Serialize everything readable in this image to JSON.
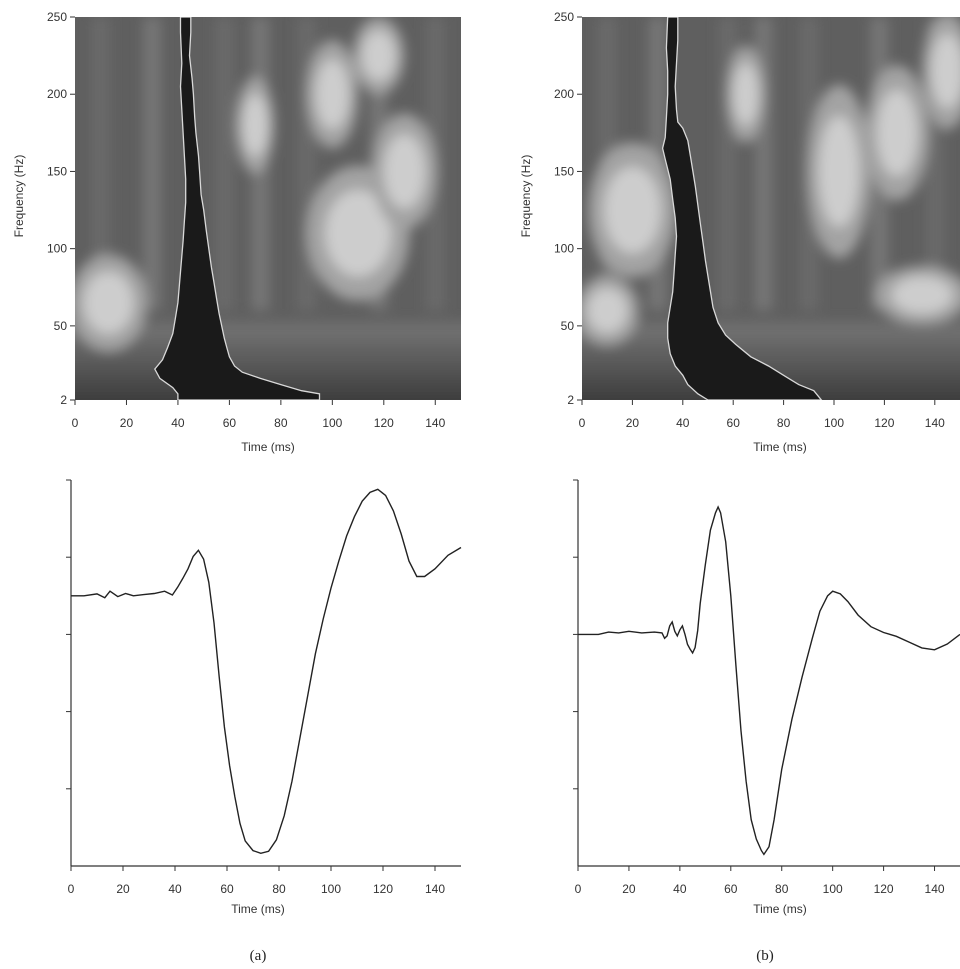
{
  "panels": [
    {
      "caption": "(a)",
      "spectrogram": {
        "type": "heatmap",
        "xlabel": "Time (ms)",
        "ylabel": "Frequency (Hz)",
        "xlim": [
          0,
          150
        ],
        "ylim": [
          2,
          250
        ],
        "xticks": [
          0,
          20,
          40,
          60,
          80,
          100,
          120,
          140
        ],
        "yticks": [
          2,
          50,
          100,
          150,
          200,
          250
        ],
        "ridge": [
          [
            45,
            250
          ],
          [
            45,
            240
          ],
          [
            44.5,
            225
          ],
          [
            45.5,
            210
          ],
          [
            46,
            200
          ],
          [
            46.5,
            185
          ],
          [
            47,
            175
          ],
          [
            48,
            160
          ],
          [
            48.5,
            148
          ],
          [
            49,
            135
          ],
          [
            50,
            125
          ],
          [
            51,
            112
          ],
          [
            52,
            100
          ],
          [
            53,
            88
          ],
          [
            54,
            78
          ],
          [
            55,
            68
          ],
          [
            56,
            58
          ],
          [
            57,
            50
          ],
          [
            58,
            42
          ],
          [
            59,
            36
          ],
          [
            60,
            30
          ],
          [
            62,
            24
          ],
          [
            65,
            20
          ],
          [
            72,
            16
          ],
          [
            80,
            12
          ],
          [
            88,
            8
          ],
          [
            95,
            6
          ],
          [
            95,
            2
          ],
          [
            40,
            2
          ],
          [
            40,
            6
          ],
          [
            38,
            10
          ],
          [
            33,
            16
          ],
          [
            31,
            22
          ],
          [
            34,
            28
          ],
          [
            36,
            36
          ],
          [
            38,
            45
          ],
          [
            39,
            55
          ],
          [
            40,
            65
          ],
          [
            40.5,
            75
          ],
          [
            41,
            85
          ],
          [
            41.5,
            95
          ],
          [
            42,
            105
          ],
          [
            42.5,
            118
          ],
          [
            43,
            130
          ],
          [
            43,
            145
          ],
          [
            42.5,
            160
          ],
          [
            42,
            175
          ],
          [
            41.5,
            190
          ],
          [
            41,
            205
          ],
          [
            41.5,
            220
          ],
          [
            41,
            240
          ],
          [
            41,
            250
          ]
        ],
        "high_regions": [
          {
            "x": 13,
            "y": 65,
            "rx": 12,
            "ry": 25
          },
          {
            "x": 110,
            "y": 110,
            "rx": 16,
            "ry": 35
          },
          {
            "x": 128,
            "y": 150,
            "rx": 10,
            "ry": 30
          },
          {
            "x": 70,
            "y": 180,
            "rx": 6,
            "ry": 25
          },
          {
            "x": 100,
            "y": 200,
            "rx": 8,
            "ry": 28
          },
          {
            "x": 118,
            "y": 225,
            "rx": 8,
            "ry": 20
          }
        ]
      },
      "waveform": {
        "type": "line",
        "xlabel": "Time (ms)",
        "xlim": [
          0,
          150
        ],
        "ylim": [
          0,
          1
        ],
        "xticks": [
          0,
          20,
          40,
          60,
          80,
          100,
          120,
          140
        ],
        "points": [
          [
            0,
            0.7
          ],
          [
            5,
            0.7
          ],
          [
            10,
            0.705
          ],
          [
            13,
            0.695
          ],
          [
            15,
            0.712
          ],
          [
            18,
            0.698
          ],
          [
            21,
            0.706
          ],
          [
            24,
            0.7
          ],
          [
            28,
            0.703
          ],
          [
            32,
            0.706
          ],
          [
            36,
            0.712
          ],
          [
            39,
            0.702
          ],
          [
            41,
            0.722
          ],
          [
            43,
            0.745
          ],
          [
            45,
            0.77
          ],
          [
            47,
            0.802
          ],
          [
            49,
            0.818
          ],
          [
            51,
            0.795
          ],
          [
            53,
            0.735
          ],
          [
            55,
            0.63
          ],
          [
            57,
            0.49
          ],
          [
            59,
            0.36
          ],
          [
            61,
            0.26
          ],
          [
            63,
            0.18
          ],
          [
            65,
            0.11
          ],
          [
            67,
            0.065
          ],
          [
            70,
            0.04
          ],
          [
            73,
            0.033
          ],
          [
            76,
            0.038
          ],
          [
            79,
            0.068
          ],
          [
            82,
            0.13
          ],
          [
            85,
            0.22
          ],
          [
            88,
            0.33
          ],
          [
            91,
            0.44
          ],
          [
            94,
            0.55
          ],
          [
            97,
            0.64
          ],
          [
            100,
            0.72
          ],
          [
            103,
            0.79
          ],
          [
            106,
            0.855
          ],
          [
            109,
            0.905
          ],
          [
            112,
            0.945
          ],
          [
            115,
            0.968
          ],
          [
            118,
            0.976
          ],
          [
            121,
            0.96
          ],
          [
            124,
            0.92
          ],
          [
            127,
            0.86
          ],
          [
            130,
            0.79
          ],
          [
            133,
            0.75
          ],
          [
            136,
            0.75
          ],
          [
            140,
            0.77
          ],
          [
            145,
            0.805
          ],
          [
            150,
            0.825
          ]
        ]
      }
    },
    {
      "caption": "(b)",
      "spectrogram": {
        "type": "heatmap",
        "xlabel": "Time (ms)",
        "ylabel": "Frequency (Hz)",
        "xlim": [
          0,
          150
        ],
        "ylim": [
          2,
          250
        ],
        "xticks": [
          0,
          20,
          40,
          60,
          80,
          100,
          120,
          140
        ],
        "yticks": [
          2,
          50,
          100,
          150,
          200,
          250
        ],
        "ridge": [
          [
            38,
            250
          ],
          [
            38,
            235
          ],
          [
            37.5,
            220
          ],
          [
            37,
            205
          ],
          [
            37.5,
            190
          ],
          [
            38,
            182
          ],
          [
            40,
            178
          ],
          [
            42,
            170
          ],
          [
            43,
            160
          ],
          [
            44,
            150
          ],
          [
            45,
            140
          ],
          [
            46,
            128
          ],
          [
            47,
            116
          ],
          [
            48,
            104
          ],
          [
            49,
            92
          ],
          [
            50,
            82
          ],
          [
            51,
            72
          ],
          [
            52,
            62
          ],
          [
            54,
            52
          ],
          [
            57,
            44
          ],
          [
            61,
            38
          ],
          [
            67,
            30
          ],
          [
            74,
            24
          ],
          [
            80,
            18
          ],
          [
            86,
            12
          ],
          [
            92,
            8
          ],
          [
            95,
            2
          ],
          [
            50,
            2
          ],
          [
            46,
            6
          ],
          [
            42,
            12
          ],
          [
            40,
            18
          ],
          [
            37,
            24
          ],
          [
            35,
            32
          ],
          [
            34,
            42
          ],
          [
            34,
            52
          ],
          [
            35,
            62
          ],
          [
            36,
            72
          ],
          [
            36.5,
            84
          ],
          [
            37,
            96
          ],
          [
            37.5,
            108
          ],
          [
            37,
            120
          ],
          [
            36,
            132
          ],
          [
            35,
            145
          ],
          [
            33,
            158
          ],
          [
            32,
            165
          ],
          [
            33,
            172
          ],
          [
            33.5,
            185
          ],
          [
            34,
            200
          ],
          [
            34,
            215
          ],
          [
            33.5,
            230
          ],
          [
            34,
            250
          ]
        ],
        "high_regions": [
          {
            "x": 20,
            "y": 125,
            "rx": 14,
            "ry": 35
          },
          {
            "x": 10,
            "y": 60,
            "rx": 10,
            "ry": 18
          },
          {
            "x": 102,
            "y": 150,
            "rx": 10,
            "ry": 45
          },
          {
            "x": 125,
            "y": 175,
            "rx": 10,
            "ry": 35
          },
          {
            "x": 145,
            "y": 215,
            "rx": 8,
            "ry": 30
          },
          {
            "x": 135,
            "y": 70,
            "rx": 15,
            "ry": 15
          },
          {
            "x": 65,
            "y": 200,
            "rx": 6,
            "ry": 25
          }
        ]
      },
      "waveform": {
        "type": "line",
        "xlabel": "Time (ms)",
        "xlim": [
          0,
          150
        ],
        "ylim": [
          0,
          1
        ],
        "xticks": [
          0,
          20,
          40,
          60,
          80,
          100,
          120,
          140
        ],
        "points": [
          [
            0,
            0.6
          ],
          [
            8,
            0.6
          ],
          [
            12,
            0.606
          ],
          [
            16,
            0.604
          ],
          [
            20,
            0.608
          ],
          [
            25,
            0.604
          ],
          [
            30,
            0.606
          ],
          [
            33,
            0.604
          ],
          [
            34,
            0.59
          ],
          [
            35,
            0.596
          ],
          [
            36,
            0.622
          ],
          [
            37,
            0.632
          ],
          [
            38,
            0.608
          ],
          [
            39,
            0.596
          ],
          [
            40,
            0.612
          ],
          [
            41,
            0.622
          ],
          [
            42,
            0.6
          ],
          [
            43,
            0.574
          ],
          [
            44,
            0.562
          ],
          [
            45,
            0.552
          ],
          [
            46,
            0.566
          ],
          [
            47,
            0.61
          ],
          [
            48,
            0.68
          ],
          [
            50,
            0.78
          ],
          [
            52,
            0.87
          ],
          [
            54,
            0.915
          ],
          [
            55,
            0.93
          ],
          [
            56,
            0.915
          ],
          [
            58,
            0.84
          ],
          [
            60,
            0.7
          ],
          [
            62,
            0.52
          ],
          [
            64,
            0.35
          ],
          [
            66,
            0.22
          ],
          [
            68,
            0.12
          ],
          [
            70,
            0.07
          ],
          [
            72,
            0.04
          ],
          [
            73,
            0.03
          ],
          [
            75,
            0.05
          ],
          [
            77,
            0.12
          ],
          [
            80,
            0.25
          ],
          [
            84,
            0.38
          ],
          [
            88,
            0.49
          ],
          [
            92,
            0.59
          ],
          [
            95,
            0.66
          ],
          [
            98,
            0.7
          ],
          [
            100,
            0.712
          ],
          [
            103,
            0.705
          ],
          [
            106,
            0.685
          ],
          [
            110,
            0.65
          ],
          [
            115,
            0.62
          ],
          [
            120,
            0.605
          ],
          [
            125,
            0.595
          ],
          [
            130,
            0.58
          ],
          [
            135,
            0.565
          ],
          [
            140,
            0.56
          ],
          [
            145,
            0.575
          ],
          [
            150,
            0.6
          ]
        ]
      }
    }
  ]
}
